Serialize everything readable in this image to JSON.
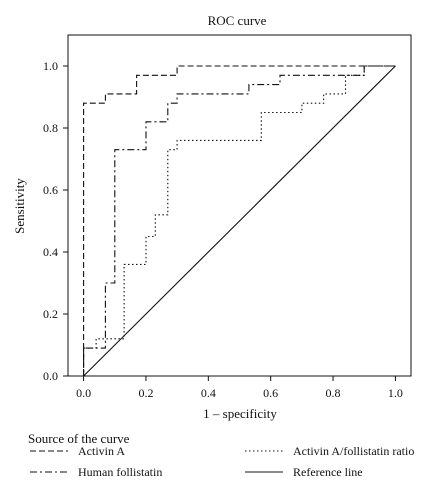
{
  "chart_data": {
    "type": "line",
    "title": "ROC curve",
    "xlabel": "1 – specificity",
    "ylabel": "Sensitivity",
    "xlim": [
      -0.05,
      1.05
    ],
    "ylim": [
      0.0,
      1.1
    ],
    "x_ticks": [
      "0.0",
      "0.2",
      "0.4",
      "0.6",
      "0.8",
      "1.0"
    ],
    "y_ticks": [
      "0.0",
      "0.2",
      "0.4",
      "0.6",
      "0.8",
      "1.0"
    ],
    "grid": false,
    "legend_title": "Source of the curve",
    "legend_position": "bottom",
    "series": [
      {
        "name": "Activin A",
        "style": "dashed",
        "x": [
          0.0,
          0.0,
          0.07,
          0.07,
          0.17,
          0.17,
          0.3,
          0.3,
          0.9,
          1.0
        ],
        "y": [
          0.0,
          0.88,
          0.88,
          0.91,
          0.91,
          0.97,
          0.97,
          1.0,
          1.0,
          1.0
        ]
      },
      {
        "name": "Human follistatin",
        "style": "dashdot",
        "x": [
          0.0,
          0.0,
          0.07,
          0.07,
          0.1,
          0.1,
          0.2,
          0.2,
          0.27,
          0.27,
          0.3,
          0.3,
          0.37,
          0.37,
          0.53,
          0.53,
          0.57,
          0.57,
          0.63,
          0.63,
          0.9,
          0.9,
          1.0
        ],
        "y": [
          0.0,
          0.09,
          0.09,
          0.3,
          0.3,
          0.73,
          0.73,
          0.82,
          0.82,
          0.88,
          0.88,
          0.91,
          0.91,
          0.91,
          0.91,
          0.94,
          0.94,
          0.94,
          0.94,
          0.97,
          0.97,
          1.0,
          1.0
        ]
      },
      {
        "name": "Activin A/follistatin ratio",
        "style": "dotted",
        "x": [
          0.0,
          0.0,
          0.04,
          0.04,
          0.1,
          0.1,
          0.13,
          0.13,
          0.2,
          0.2,
          0.23,
          0.23,
          0.27,
          0.27,
          0.3,
          0.3,
          0.43,
          0.43,
          0.57,
          0.57,
          0.7,
          0.7,
          0.77,
          0.77,
          0.84,
          0.84,
          0.9,
          0.9,
          1.0
        ],
        "y": [
          0.0,
          0.09,
          0.09,
          0.12,
          0.12,
          0.12,
          0.12,
          0.36,
          0.36,
          0.45,
          0.45,
          0.52,
          0.52,
          0.73,
          0.73,
          0.76,
          0.76,
          0.76,
          0.76,
          0.85,
          0.85,
          0.88,
          0.88,
          0.91,
          0.91,
          0.97,
          0.97,
          1.0,
          1.0
        ]
      },
      {
        "name": "Reference line",
        "style": "solid",
        "x": [
          0.0,
          1.0
        ],
        "y": [
          0.0,
          1.0
        ]
      }
    ]
  }
}
